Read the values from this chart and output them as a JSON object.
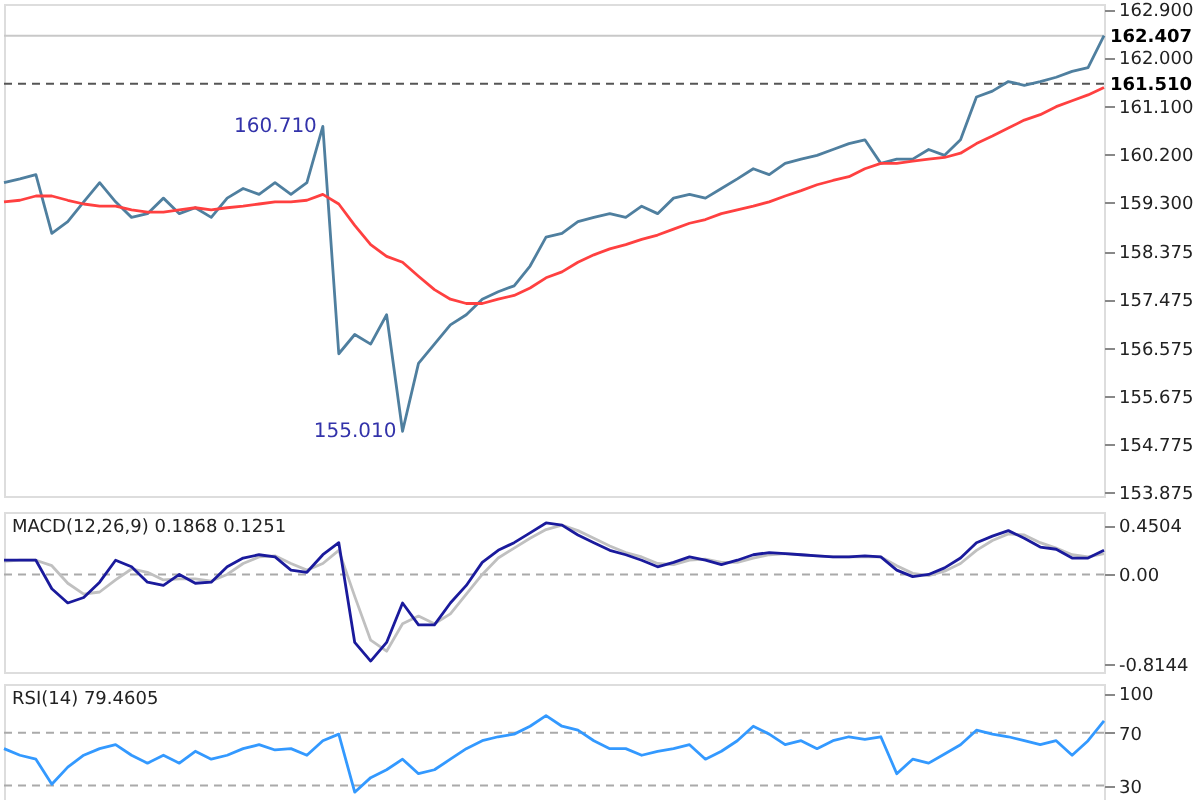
{
  "chart_data": [
    {
      "type": "line",
      "tick_labels": "y",
      "categories": [
        null,
        null,
        null,
        null,
        null,
        null,
        null,
        null,
        null,
        null,
        null,
        null,
        null,
        null,
        null,
        null,
        null,
        null,
        null,
        null,
        null,
        null,
        null,
        null,
        null,
        null,
        null,
        null,
        null,
        null,
        null,
        null,
        null,
        null,
        null,
        null,
        null,
        null,
        null,
        null,
        null,
        null,
        null,
        null,
        null,
        null,
        null,
        null,
        null,
        null,
        null,
        null,
        null,
        null,
        null,
        null,
        null,
        null,
        null,
        null,
        null,
        null,
        null,
        null,
        null,
        null,
        null,
        null,
        null,
        null
      ],
      "ylim": [
        153.8,
        163.0
      ],
      "yticks": [
        {
          "value": 162.9,
          "label": "162.900"
        },
        {
          "value": 162.0,
          "label": "162.000"
        },
        {
          "value": 161.1,
          "label": "161.100"
        },
        {
          "value": 160.2,
          "label": "160.200"
        },
        {
          "value": 159.3,
          "label": "159.300"
        },
        {
          "value": 158.375,
          "label": "158.375"
        },
        {
          "value": 157.475,
          "label": "157.475"
        },
        {
          "value": 156.575,
          "label": "156.575"
        },
        {
          "value": 155.675,
          "label": "155.675"
        },
        {
          "value": 154.775,
          "label": "154.775"
        },
        {
          "value": 153.875,
          "label": "153.875"
        }
      ],
      "series": [
        {
          "color": "#4f7f9f",
          "values": [
            159.66,
            159.73,
            159.81,
            158.71,
            158.93,
            159.3,
            159.66,
            159.3,
            159.01,
            159.08,
            159.37,
            159.08,
            159.19,
            159.01,
            159.37,
            159.55,
            159.44,
            159.66,
            159.44,
            159.66,
            160.71,
            156.46,
            156.82,
            156.64,
            157.19,
            155.01,
            156.28,
            156.64,
            157.0,
            157.19,
            157.48,
            157.62,
            157.73,
            158.1,
            158.64,
            158.71,
            158.93,
            159.01,
            159.08,
            159.01,
            159.22,
            159.08,
            159.37,
            159.44,
            159.37,
            159.55,
            159.73,
            159.92,
            159.81,
            160.02,
            160.1,
            160.17,
            160.28,
            160.39,
            160.46,
            160.02,
            160.1,
            160.1,
            160.28,
            160.17,
            160.46,
            161.26,
            161.37,
            161.55,
            161.48,
            161.55,
            161.63,
            161.74,
            161.81,
            162.41
          ]
        },
        {
          "color": "#ff4040",
          "values": [
            159.3,
            159.33,
            159.41,
            159.41,
            159.33,
            159.26,
            159.22,
            159.22,
            159.15,
            159.11,
            159.11,
            159.15,
            159.19,
            159.15,
            159.19,
            159.22,
            159.26,
            159.3,
            159.3,
            159.33,
            159.44,
            159.26,
            158.86,
            158.5,
            158.28,
            158.17,
            157.91,
            157.66,
            157.48,
            157.4,
            157.4,
            157.48,
            157.55,
            157.69,
            157.88,
            157.99,
            158.17,
            158.31,
            158.42,
            158.5,
            158.6,
            158.68,
            158.79,
            158.9,
            158.97,
            159.08,
            159.15,
            159.22,
            159.3,
            159.41,
            159.51,
            159.62,
            159.7,
            159.77,
            159.92,
            160.02,
            160.02,
            160.06,
            160.1,
            160.13,
            160.21,
            160.39,
            160.53,
            160.68,
            160.83,
            160.93,
            161.08,
            161.19,
            161.3,
            161.44
          ]
        }
      ],
      "ref_lines": [
        {
          "axis": "y",
          "value": 162.407,
          "label": "162.407",
          "color": "#c8c8c8",
          "line_style": "solid"
        },
        {
          "axis": "y",
          "value": 161.51,
          "label": "161.510",
          "color": "#555555",
          "line_style": "dashed"
        }
      ],
      "annotations": [
        "160.710",
        "155.010"
      ]
    },
    {
      "type": "line",
      "tick_labels": "y",
      "title": "MACD(12,26,9) 0.1868 0.1251",
      "categories": [
        null,
        null,
        null,
        null,
        null,
        null,
        null,
        null,
        null,
        null,
        null,
        null,
        null,
        null,
        null,
        null,
        null,
        null,
        null,
        null,
        null,
        null,
        null,
        null,
        null,
        null,
        null,
        null,
        null,
        null,
        null,
        null,
        null,
        null,
        null,
        null,
        null,
        null,
        null,
        null,
        null,
        null,
        null,
        null,
        null,
        null,
        null,
        null,
        null,
        null,
        null,
        null,
        null,
        null,
        null,
        null,
        null,
        null,
        null,
        null,
        null,
        null,
        null,
        null,
        null,
        null,
        null,
        null,
        null,
        null
      ],
      "ylim": [
        -0.89,
        0.57
      ],
      "yticks": [
        0.4504,
        {
          "value": 0,
          "label": "0.00"
        },
        -0.8144
      ],
      "series": [
        {
          "color": "#c0c0c0",
          "values": [
            0.12,
            0.13,
            0.13,
            0.08,
            -0.08,
            -0.18,
            -0.16,
            -0.05,
            0.05,
            0.02,
            -0.05,
            -0.04,
            -0.04,
            -0.06,
            0.0,
            0.1,
            0.16,
            0.17,
            0.1,
            0.04,
            0.1,
            0.22,
            -0.2,
            -0.6,
            -0.7,
            -0.45,
            -0.38,
            -0.45,
            -0.36,
            -0.18,
            0.0,
            0.15,
            0.24,
            0.33,
            0.41,
            0.45,
            0.4,
            0.33,
            0.26,
            0.2,
            0.16,
            0.1,
            0.09,
            0.13,
            0.14,
            0.11,
            0.11,
            0.15,
            0.18,
            0.19,
            0.18,
            0.17,
            0.16,
            0.16,
            0.16,
            0.16,
            0.08,
            0.01,
            -0.01,
            0.03,
            0.1,
            0.22,
            0.31,
            0.37,
            0.36,
            0.29,
            0.24,
            0.18,
            0.16,
            0.19
          ]
        },
        {
          "color": "#1a1a9c",
          "values": [
            0.13,
            0.13,
            0.13,
            -0.13,
            -0.26,
            -0.21,
            -0.07,
            0.13,
            0.07,
            -0.07,
            -0.1,
            0.0,
            -0.08,
            -0.07,
            0.07,
            0.15,
            0.18,
            0.16,
            0.04,
            0.02,
            0.18,
            0.29,
            -0.62,
            -0.79,
            -0.62,
            -0.26,
            -0.46,
            -0.46,
            -0.26,
            -0.1,
            0.11,
            0.22,
            0.29,
            0.38,
            0.47,
            0.45,
            0.36,
            0.29,
            0.22,
            0.18,
            0.13,
            0.07,
            0.11,
            0.16,
            0.13,
            0.09,
            0.13,
            0.18,
            0.2,
            0.19,
            0.18,
            0.17,
            0.16,
            0.16,
            0.17,
            0.16,
            0.04,
            -0.02,
            0.0,
            0.06,
            0.15,
            0.29,
            0.35,
            0.4,
            0.33,
            0.25,
            0.23,
            0.15,
            0.15,
            0.22
          ]
        }
      ],
      "ref_lines": [
        {
          "axis": "y",
          "value": 0,
          "color": "#aaaaaa",
          "line_style": "dashed"
        }
      ]
    },
    {
      "type": "line",
      "tick_labels": "y",
      "title": "RSI(14) 79.4605",
      "categories": [
        null,
        null,
        null,
        null,
        null,
        null,
        null,
        null,
        null,
        null,
        null,
        null,
        null,
        null,
        null,
        null,
        null,
        null,
        null,
        null,
        null,
        null,
        null,
        null,
        null,
        null,
        null,
        null,
        null,
        null,
        null,
        null,
        null,
        null,
        null,
        null,
        null,
        null,
        null,
        null,
        null,
        null,
        null,
        null,
        null,
        null,
        null,
        null,
        null,
        null,
        null,
        null,
        null,
        null,
        null,
        null,
        null,
        null,
        null,
        null,
        null,
        null,
        null,
        null,
        null,
        null,
        null,
        null,
        null,
        null
      ],
      "ylim": [
        13,
        107
      ],
      "yticks": [
        100,
        70,
        30
      ],
      "series": [
        {
          "color": "#3399ff",
          "values": [
            58,
            53,
            50,
            31,
            44,
            53,
            58,
            61,
            53,
            47,
            53,
            47,
            56,
            50,
            53,
            58,
            61,
            57,
            58,
            53,
            64,
            69,
            25,
            36,
            42,
            50,
            39,
            42,
            50,
            58,
            64,
            67,
            69,
            75,
            83,
            75,
            72,
            64,
            58,
            58,
            53,
            56,
            58,
            61,
            50,
            56,
            64,
            75,
            69,
            61,
            64,
            58,
            64,
            67,
            65,
            67,
            39,
            50,
            47,
            54,
            61,
            72,
            69,
            67,
            64,
            61,
            64,
            53,
            64,
            79
          ]
        }
      ],
      "ref_lines": [
        {
          "axis": "y",
          "value": 70,
          "color": "#aaaaaa",
          "line_style": "dashed"
        },
        {
          "axis": "y",
          "value": 30,
          "color": "#aaaaaa",
          "line_style": "dashed"
        }
      ]
    }
  ]
}
